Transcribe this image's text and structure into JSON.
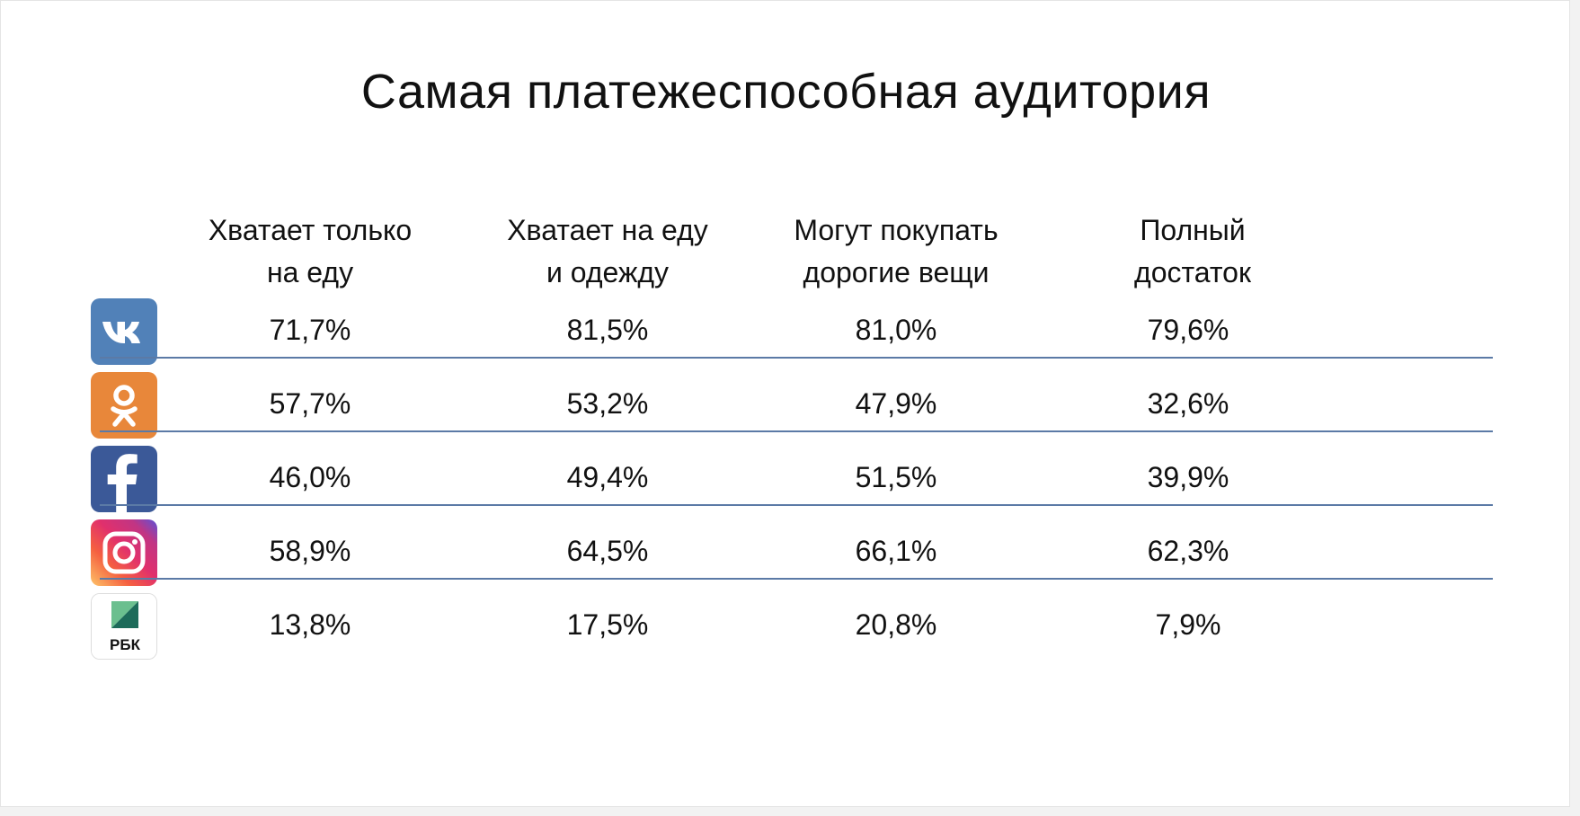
{
  "chart_data": {
    "type": "table",
    "title": "Самая платежеспособная аудитория",
    "columns": [
      {
        "line1": "Хватает только",
        "line2": "на еду"
      },
      {
        "line1": "Хватает на еду",
        "line2": "и одежду"
      },
      {
        "line1": "Могут покупать",
        "line2": "дорогие вещи"
      },
      {
        "line1": "Полный",
        "line2": "достаток"
      }
    ],
    "rows": [
      {
        "icon": "vk-icon",
        "color": "#5181b8",
        "values": [
          "71,7%",
          "81,5%",
          "81,0%",
          "79,6%"
        ]
      },
      {
        "icon": "odnoklassniki-icon",
        "color": "#ee8208",
        "values": [
          "57,7%",
          "53,2%",
          "47,9%",
          "32,6%"
        ]
      },
      {
        "icon": "facebook-icon",
        "color": "#3b5998",
        "values": [
          "46,0%",
          "49,4%",
          "51,5%",
          "39,9%"
        ]
      },
      {
        "icon": "instagram-icon",
        "color": "#c13584",
        "values": [
          "58,9%",
          "64,5%",
          "66,1%",
          "62,3%"
        ]
      },
      {
        "icon": "rbc-icon",
        "color": "#1d6b5a",
        "logo_text": "РБК",
        "values": [
          "13,8%",
          "17,5%",
          "20,8%",
          "7,9%"
        ]
      }
    ],
    "divider_color": "#5b7aa6"
  }
}
